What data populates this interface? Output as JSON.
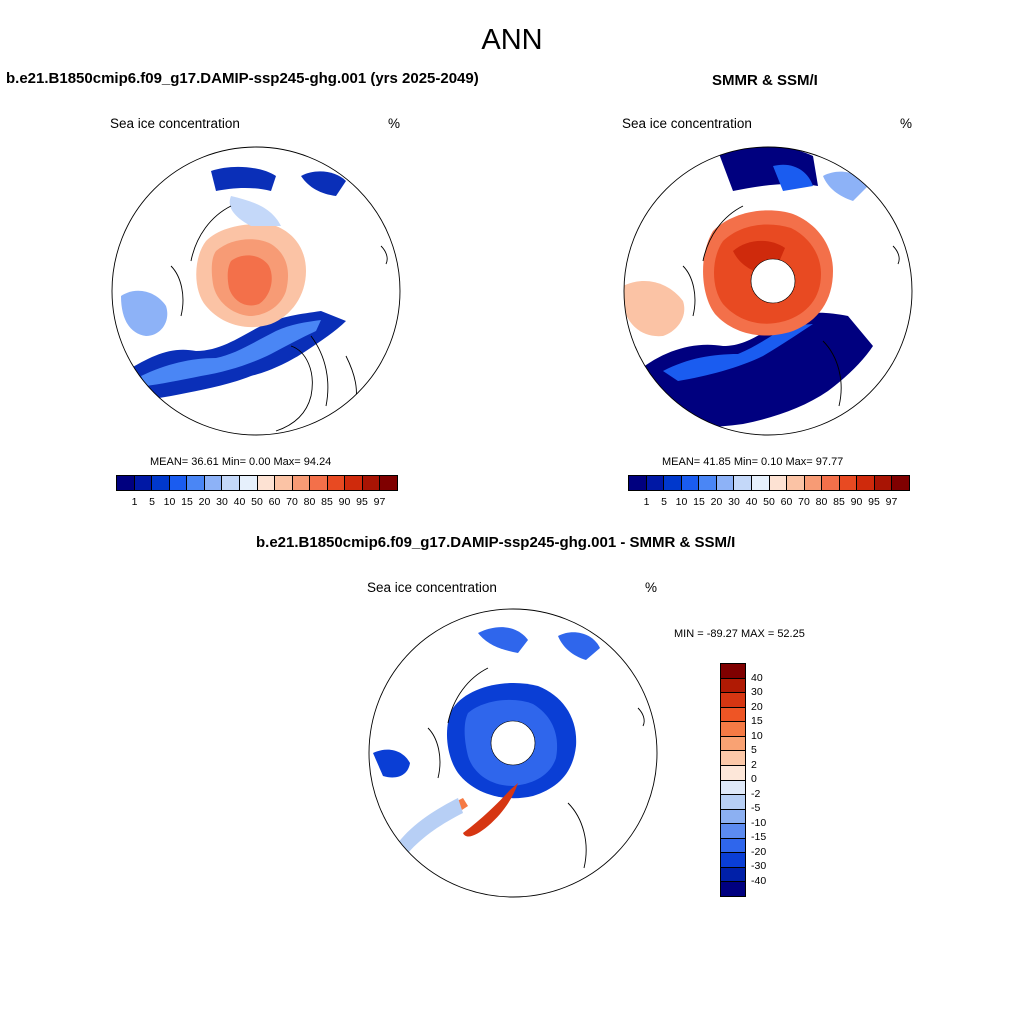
{
  "figure": {
    "title": "ANN",
    "panel_left_title": "b.e21.B1850cmip6.f09_g17.DAMIP-ssp245-ghg.001 (yrs 2025-2049)",
    "panel_right_title": "SMMR & SSM/I",
    "panel_diff_title": "b.e21.B1850cmip6.f09_g17.DAMIP-ssp245-ghg.001 - SMMR & SSM/I",
    "variable_label": "Sea ice concentration",
    "units_label": "%"
  },
  "panels": {
    "model": {
      "stats": "MEAN=  36.61  Min=   0.00  Max=  94.24"
    },
    "obs": {
      "stats": "MEAN=  41.85  Min=   0.10  Max=  97.77"
    },
    "diff": {
      "stats": "MIN = -89.27 MAX =  52.25"
    }
  },
  "colorbar_main": {
    "ticks": [
      "1",
      "5",
      "10",
      "15",
      "20",
      "30",
      "40",
      "50",
      "60",
      "70",
      "80",
      "85",
      "90",
      "95",
      "97"
    ],
    "colors": [
      "#00007f",
      "#0018a5",
      "#0038cc",
      "#1a5cf0",
      "#4a86f5",
      "#8db2f7",
      "#c4d8f9",
      "#e6f0fc",
      "#fde2d3",
      "#fbc3a5",
      "#f79b75",
      "#f3704a",
      "#e84a22",
      "#cf2a0c",
      "#a81404",
      "#7f0000"
    ]
  },
  "colorbar_diff": {
    "ticks": [
      "40",
      "30",
      "20",
      "15",
      "10",
      "5",
      "2",
      "0",
      "-2",
      "-5",
      "-10",
      "-15",
      "-20",
      "-30",
      "-40"
    ],
    "colors": [
      "#7f0000",
      "#b01a04",
      "#d63612",
      "#ee5525",
      "#f57a45",
      "#f9a273",
      "#fcc8a8",
      "#fde7d9",
      "#dfe9f9",
      "#b7cff5",
      "#8cb0f2",
      "#5c8bf0",
      "#2f66ec",
      "#0a3ed5",
      "#0020a8",
      "#000080"
    ]
  }
}
